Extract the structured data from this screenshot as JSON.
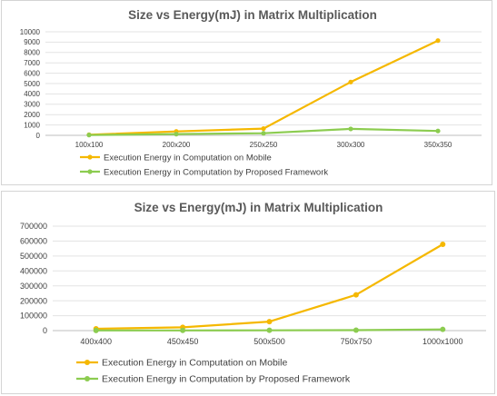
{
  "chart_data": [
    {
      "type": "line",
      "title": "Size vs Energy(mJ) in Matrix Multiplication",
      "categories": [
        "100x100",
        "200x200",
        "250x250",
        "300x300",
        "350x350"
      ],
      "ylim": [
        0,
        10000
      ],
      "yticks": [
        0,
        1000,
        2000,
        3000,
        4000,
        5000,
        6000,
        7000,
        8000,
        9000,
        10000
      ],
      "grid": true,
      "legend": "bottom",
      "series": [
        {
          "name": "Execution Energy in Computation on Mobile",
          "color": "#f5b800",
          "values": [
            60,
            380,
            650,
            5150,
            9150
          ]
        },
        {
          "name": "Execution Energy in Computation by Proposed Framework",
          "color": "#8ccc50",
          "values": [
            30,
            120,
            200,
            620,
            420
          ]
        }
      ]
    },
    {
      "type": "line",
      "title": "Size vs Energy(mJ) in Matrix Multiplication",
      "categories": [
        "400x400",
        "450x450",
        "500x500",
        "750x750",
        "1000x1000"
      ],
      "ylim": [
        0,
        700000
      ],
      "yticks": [
        0,
        100000,
        200000,
        300000,
        400000,
        500000,
        600000,
        700000
      ],
      "grid": true,
      "legend": "bottom",
      "series": [
        {
          "name": "Execution Energy in Computation on Mobile",
          "color": "#f5b800",
          "values": [
            12000,
            22000,
            60000,
            240000,
            578000
          ]
        },
        {
          "name": "Execution Energy in Computation by Proposed Framework",
          "color": "#8ccc50",
          "values": [
            1000,
            1500,
            2000,
            3000,
            8000
          ]
        }
      ]
    }
  ]
}
